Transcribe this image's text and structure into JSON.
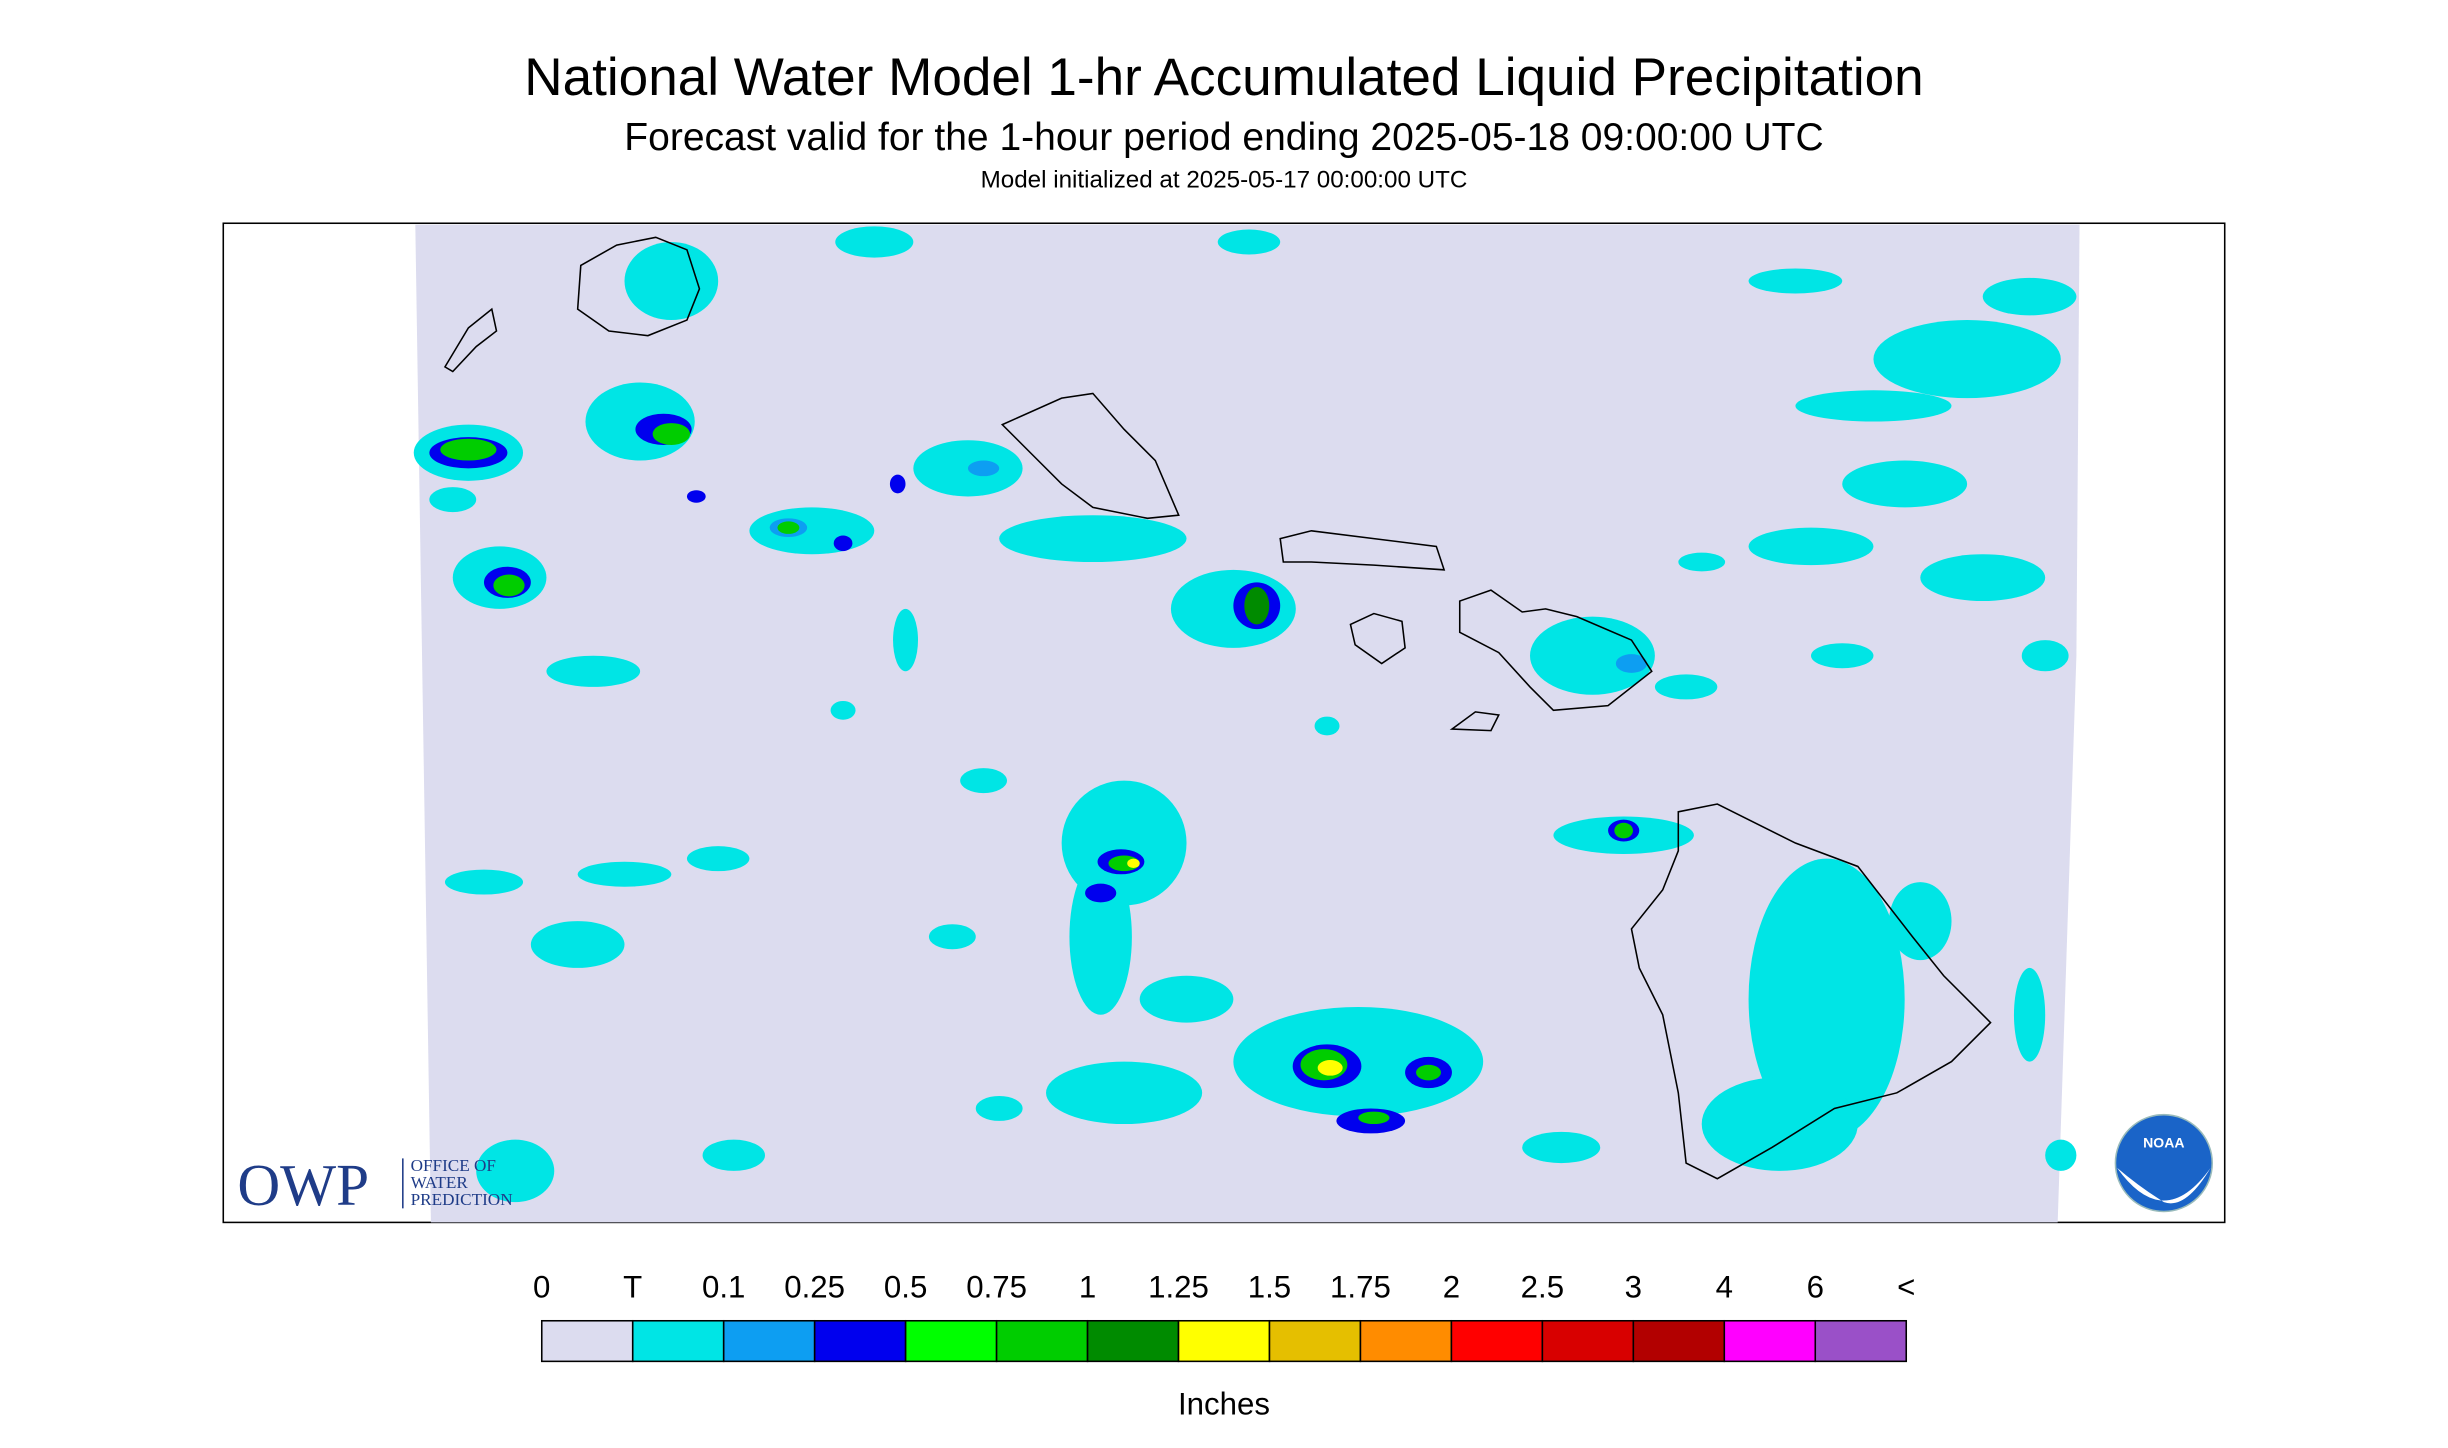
{
  "header": {
    "title": "National Water Model 1-hr Accumulated Liquid Precipitation",
    "subtitle": "Forecast valid for the 1-hour period ending 2025-05-18 09:00:00 UTC",
    "init": "Model initialized at 2025-05-17 00:00:00 UTC"
  },
  "legend": {
    "labels": [
      "0",
      "T",
      "0.1",
      "0.25",
      "0.5",
      "0.75",
      "1",
      "1.25",
      "1.5",
      "1.75",
      "2",
      "2.5",
      "3",
      "4",
      "6",
      "<"
    ],
    "colors": [
      "#dcdcef",
      "#00e5e5",
      "#0d9ef2",
      "#0000ee",
      "#00ff00",
      "#00cd00",
      "#008b00",
      "#ffff00",
      "#e5bf00",
      "#ff8c00",
      "#ff0000",
      "#d80000",
      "#b20000",
      "#ff00ff",
      "#9a50c8"
    ],
    "unit": "Inches"
  },
  "logos": {
    "owp": "OWP",
    "owp_lines": [
      "OFFICE OF",
      "WATER",
      "PREDICTION"
    ],
    "noaa": "NOAA"
  }
}
